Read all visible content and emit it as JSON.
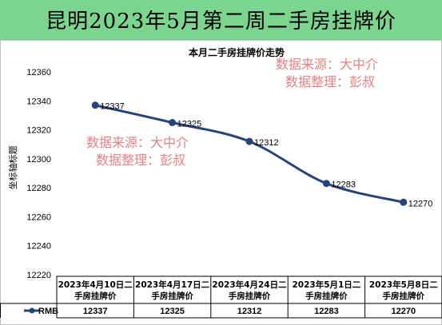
{
  "banner": {
    "title": "昆明2023年5月第二周二手房挂牌价"
  },
  "watermarks": [
    [
      "数据来源：大中介",
      "数据整理：彭叔"
    ],
    [
      "数据来源：大中介",
      "数据整理：彭叔"
    ]
  ],
  "colors": {
    "banner_bg": "#7bd58f",
    "series": "#264478",
    "watermark": "#e06b6b"
  },
  "chart_data": {
    "type": "line",
    "title": "本月二手房挂牌价走势",
    "ylabel": "坐标轴标题",
    "xlabel": "",
    "ylim": [
      12220,
      12360
    ],
    "yticks": [
      12220,
      12240,
      12260,
      12280,
      12300,
      12320,
      12340,
      12360
    ],
    "grid": false,
    "legend": "data-table",
    "categories": [
      "2023年4月10日二手房挂牌价",
      "2023年4月17日二手房挂牌价",
      "2023年4月24日二手房挂牌价",
      "2023年5月1日二手房挂牌价",
      "2023年5月8日二手房挂牌价"
    ],
    "category_lines": [
      [
        "2023年4月10日二",
        "手房挂牌价"
      ],
      [
        "2023年4月17日二",
        "手房挂牌价"
      ],
      [
        "2023年4月24日二",
        "手房挂牌价"
      ],
      [
        "2023年5月1日二",
        "手房挂牌价"
      ],
      [
        "2023年5月8日二",
        "手房挂牌价"
      ]
    ],
    "series": [
      {
        "name": "RMB",
        "values": [
          12337,
          12325,
          12312,
          12283,
          12270
        ]
      }
    ]
  }
}
